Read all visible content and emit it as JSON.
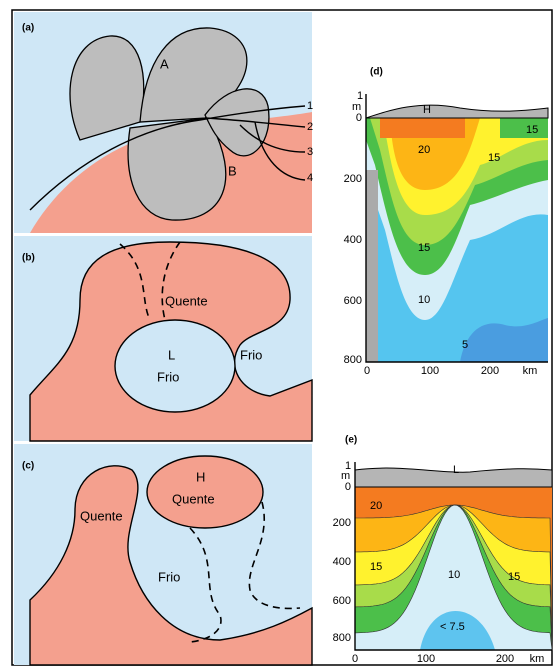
{
  "panel_a": {
    "label": "(a)",
    "high": "A",
    "low": "B",
    "streamlines": [
      "1",
      "2",
      "3",
      "4"
    ]
  },
  "panel_b": {
    "label": "(b)",
    "warm": "Quente",
    "low": "L",
    "low_region": "Frio",
    "cold": "Frio"
  },
  "panel_c": {
    "label": "(c)",
    "high": "H",
    "high_region": "Quente",
    "warm": "Quente",
    "cold": "Frio"
  },
  "panel_d": {
    "label": "(d)",
    "surface": "H",
    "y_unit_top": "1",
    "y_unit": "m",
    "y_ticks": [
      "0",
      "200",
      "400",
      "600",
      "800"
    ],
    "x_ticks": [
      "0",
      "100",
      "200"
    ],
    "x_unit": "km",
    "contours": [
      "20",
      "15",
      "15",
      "15",
      "10",
      "5"
    ]
  },
  "panel_e": {
    "label": "(e)",
    "surface": "L",
    "y_unit_top": "1",
    "y_unit": "m",
    "y_ticks": [
      "0",
      "200",
      "400",
      "600",
      "800"
    ],
    "x_ticks": [
      "0",
      "100",
      "200"
    ],
    "x_unit": "km",
    "contours": [
      "20",
      "15",
      "10",
      "15",
      "< 7.5"
    ]
  }
}
